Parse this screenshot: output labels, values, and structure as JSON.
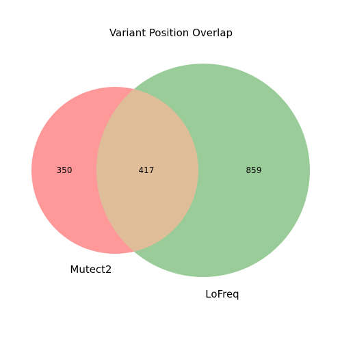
{
  "title": "Variant Position Overlap",
  "sets": {
    "a": {
      "label": "Mutect2",
      "only_count": "350",
      "color": "#ff9999"
    },
    "b": {
      "label": "LoFreq",
      "only_count": "859",
      "color": "#99cc99"
    }
  },
  "intersection": {
    "count": "417",
    "color": "#e0bd99"
  }
}
